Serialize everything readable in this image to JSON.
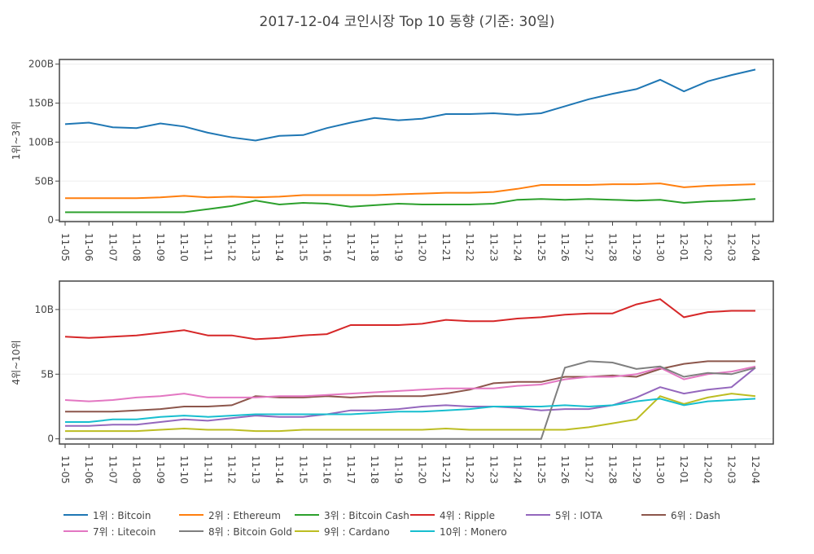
{
  "title": "2017-12-04 코인시장 Top 10 동향 (기준: 30일)",
  "chart_data": [
    {
      "type": "line",
      "ylabel": "1위~3위",
      "categories": [
        "11-05",
        "11-06",
        "11-07",
        "11-08",
        "11-09",
        "11-10",
        "11-11",
        "11-12",
        "11-13",
        "11-14",
        "11-15",
        "11-16",
        "11-17",
        "11-18",
        "11-19",
        "11-20",
        "11-21",
        "11-22",
        "11-23",
        "11-24",
        "11-25",
        "11-26",
        "11-27",
        "11-28",
        "11-29",
        "11-30",
        "12-01",
        "12-02",
        "12-03",
        "12-04"
      ],
      "ylim": [
        -2,
        206
      ],
      "yticks": [
        0,
        {
          "value": 50,
          "label": "50B"
        },
        {
          "value": 100,
          "label": "100B"
        },
        {
          "value": 150,
          "label": "150B"
        },
        {
          "value": 200,
          "label": "200B"
        }
      ],
      "grid": true,
      "series": [
        {
          "name": "1위 : Bitcoin",
          "color": "#1f77b4",
          "values": [
            123,
            125,
            119,
            118,
            124,
            120,
            112,
            106,
            102,
            108,
            109,
            118,
            125,
            131,
            128,
            130,
            136,
            136,
            137,
            135,
            137,
            146,
            155,
            162,
            168,
            180,
            165,
            178,
            186,
            193
          ]
        },
        {
          "name": "2위 : Ethereum",
          "color": "#ff7f0e",
          "values": [
            28,
            28,
            28,
            28,
            29,
            31,
            29,
            30,
            29,
            30,
            32,
            32,
            32,
            32,
            33,
            34,
            35,
            35,
            36,
            40,
            45,
            45,
            45,
            46,
            46,
            47,
            42,
            44,
            45,
            46
          ]
        },
        {
          "name": "3위 : Bitcoin Cash",
          "color": "#2ca02c",
          "values": [
            10,
            10,
            10,
            10,
            10,
            10,
            14,
            18,
            25,
            20,
            22,
            21,
            17,
            19,
            21,
            20,
            20,
            20,
            21,
            26,
            27,
            26,
            27,
            26,
            25,
            26,
            22,
            24,
            25,
            27
          ]
        }
      ]
    },
    {
      "type": "line",
      "ylabel": "4위~10위",
      "categories": [
        "11-05",
        "11-06",
        "11-07",
        "11-08",
        "11-09",
        "11-10",
        "11-11",
        "11-12",
        "11-13",
        "11-14",
        "11-15",
        "11-16",
        "11-17",
        "11-18",
        "11-19",
        "11-20",
        "11-21",
        "11-22",
        "11-23",
        "11-24",
        "11-25",
        "11-26",
        "11-27",
        "11-28",
        "11-29",
        "11-30",
        "12-01",
        "12-02",
        "12-03",
        "12-04"
      ],
      "ylim": [
        -0.4,
        12.2
      ],
      "yticks": [
        0,
        {
          "value": 5,
          "label": "5B"
        },
        {
          "value": 10,
          "label": "10B"
        }
      ],
      "grid": true,
      "series": [
        {
          "name": "4위 : Ripple",
          "color": "#d62728",
          "values": [
            7.9,
            7.8,
            7.9,
            8.0,
            8.2,
            8.4,
            8.0,
            8.0,
            7.7,
            7.8,
            8.0,
            8.1,
            8.8,
            8.8,
            8.8,
            8.9,
            9.2,
            9.1,
            9.1,
            9.3,
            9.4,
            9.6,
            9.7,
            9.7,
            10.4,
            10.8,
            9.4,
            9.8,
            9.9,
            9.9
          ]
        },
        {
          "name": "5위 : IOTA",
          "color": "#9467bd",
          "values": [
            1.0,
            1.0,
            1.1,
            1.1,
            1.3,
            1.5,
            1.4,
            1.6,
            1.8,
            1.7,
            1.7,
            1.9,
            2.2,
            2.2,
            2.3,
            2.5,
            2.6,
            2.5,
            2.5,
            2.4,
            2.2,
            2.3,
            2.3,
            2.6,
            3.2,
            4.0,
            3.5,
            3.8,
            4.0,
            5.5
          ]
        },
        {
          "name": "6위 : Dash",
          "color": "#8c564b",
          "values": [
            2.1,
            2.1,
            2.1,
            2.2,
            2.3,
            2.5,
            2.5,
            2.6,
            3.3,
            3.2,
            3.2,
            3.3,
            3.2,
            3.3,
            3.3,
            3.3,
            3.5,
            3.8,
            4.3,
            4.4,
            4.4,
            4.8,
            4.8,
            4.9,
            4.8,
            5.4,
            5.8,
            6.0,
            6.0,
            6.0
          ]
        },
        {
          "name": "7위 : Litecoin",
          "color": "#e377c2",
          "values": [
            3.0,
            2.9,
            3.0,
            3.2,
            3.3,
            3.5,
            3.2,
            3.2,
            3.2,
            3.3,
            3.3,
            3.4,
            3.5,
            3.6,
            3.7,
            3.8,
            3.9,
            3.9,
            3.9,
            4.1,
            4.2,
            4.6,
            4.8,
            4.8,
            5.0,
            5.5,
            4.6,
            5.0,
            5.2,
            5.6
          ]
        },
        {
          "name": "8위 : Bitcoin Gold",
          "color": "#7f7f7f",
          "values": [
            0,
            0,
            0,
            0,
            0,
            0,
            0,
            0,
            0,
            0,
            0,
            0,
            0,
            0,
            0,
            0,
            0,
            0,
            0,
            0,
            0,
            5.5,
            6.0,
            5.9,
            5.4,
            5.6,
            4.8,
            5.1,
            5.0,
            5.5
          ]
        },
        {
          "name": "9위 : Cardano",
          "color": "#bcbd22",
          "values": [
            0.6,
            0.6,
            0.6,
            0.6,
            0.7,
            0.8,
            0.7,
            0.7,
            0.6,
            0.6,
            0.7,
            0.7,
            0.7,
            0.7,
            0.7,
            0.7,
            0.8,
            0.7,
            0.7,
            0.7,
            0.7,
            0.7,
            0.9,
            1.2,
            1.5,
            3.3,
            2.7,
            3.2,
            3.5,
            3.3
          ]
        },
        {
          "name": "10위 : Monero",
          "color": "#17becf",
          "values": [
            1.3,
            1.3,
            1.5,
            1.5,
            1.7,
            1.8,
            1.7,
            1.8,
            1.9,
            1.9,
            1.9,
            1.9,
            1.9,
            2.0,
            2.1,
            2.1,
            2.2,
            2.3,
            2.5,
            2.5,
            2.5,
            2.6,
            2.5,
            2.6,
            2.9,
            3.1,
            2.6,
            2.9,
            3.0,
            3.1
          ]
        }
      ]
    }
  ]
}
